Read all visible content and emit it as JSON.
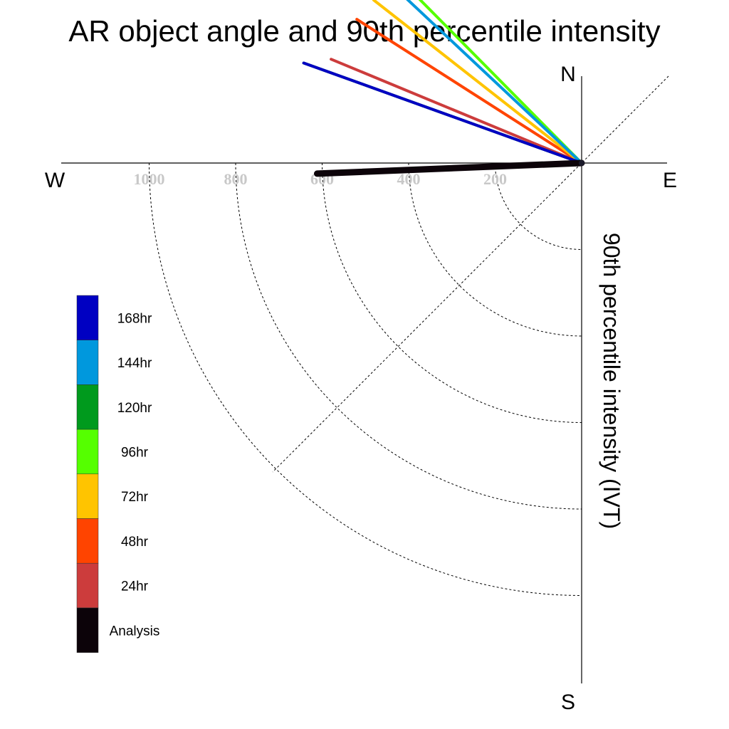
{
  "chart_data": {
    "type": "polar-vector",
    "title": "AR object angle and 90th percentile intensity",
    "radial_label": "90th percentile intensity (IVT)",
    "compass": {
      "north": "N",
      "south": "S",
      "east": "E",
      "west": "W"
    },
    "radial_ticks": [
      200,
      400,
      600,
      800,
      1000
    ],
    "radial_range": [
      0,
      1100
    ],
    "reference_diagonal": "NE-SW",
    "vectors": [
      {
        "name": "Analysis",
        "color": "#0c0309",
        "magnitude": 612,
        "angle_deg": 182.3,
        "heavy": true
      },
      {
        "name": "24hr",
        "color": "#cc3c3c",
        "magnitude": 627,
        "angle_deg": 157.5
      },
      {
        "name": "48hr",
        "color": "#ff4400",
        "magnitude": 617,
        "angle_deg": 147.4
      },
      {
        "name": "72hr",
        "color": "#ffc400",
        "magnitude": 611,
        "angle_deg": 141.9
      },
      {
        "name": "96hr",
        "color": "#55ff00",
        "magnitude": 550,
        "angle_deg": 134.7
      },
      {
        "name": "120hr",
        "color": "#009a1d",
        "magnitude": 683,
        "angle_deg": 160.2
      },
      {
        "name": "144hr",
        "color": "#0098dd",
        "magnitude": 576,
        "angle_deg": 136.8
      },
      {
        "name": "168hr",
        "color": "#0000c2",
        "magnitude": 683,
        "angle_deg": 160.2
      }
    ],
    "legend": {
      "placement": "left",
      "entries": [
        {
          "label": "168hr",
          "color": "#0000c2"
        },
        {
          "label": "144hr",
          "color": "#0098dd"
        },
        {
          "label": "120hr",
          "color": "#009a1d"
        },
        {
          "label": "96hr",
          "color": "#55ff00"
        },
        {
          "label": "72hr",
          "color": "#ffc400"
        },
        {
          "label": "48hr",
          "color": "#ff4400"
        },
        {
          "label": "24hr",
          "color": "#cc3c3c"
        },
        {
          "label": "Analysis",
          "color": "#0c0309"
        }
      ]
    }
  }
}
